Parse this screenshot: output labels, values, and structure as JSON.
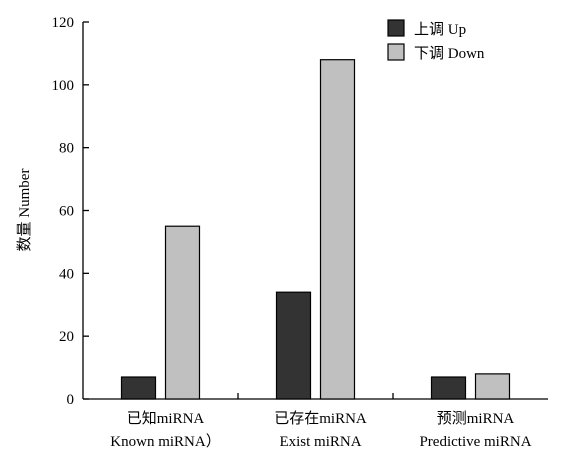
{
  "chart_data": {
    "type": "bar",
    "title": "",
    "ylabel": "数量 Number",
    "xlabel": "",
    "ylim": [
      0,
      120
    ],
    "yticks": [
      "0",
      "20",
      "40",
      "60",
      "80",
      "100",
      "120"
    ],
    "grid": false,
    "legend_position": "top-right",
    "categories": [
      [
        "已知miRNA",
        "Known miRNA）"
      ],
      [
        "已存在miRNA",
        "Exist miRNA"
      ],
      [
        "预测miRNA",
        "Predictive miRNA"
      ]
    ],
    "series": [
      {
        "name": "上调 Up",
        "color": "#333333",
        "values": [
          7,
          34,
          7
        ]
      },
      {
        "name": "下调 Down",
        "color": "#c0c0c0",
        "values": [
          55,
          108,
          8
        ]
      }
    ]
  }
}
